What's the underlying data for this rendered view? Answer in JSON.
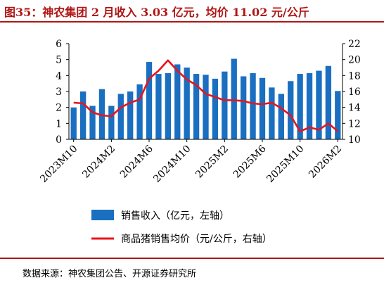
{
  "title": "图35：神农集团 2 月收入 3.03 亿元，均价 11.02 元/公斤",
  "source": "数据来源：神农集团公告、开源证券研究所",
  "chart_data": {
    "type": "bar+line",
    "x": [
      "2023M10",
      "2023M11",
      "2023M12",
      "2024M1",
      "2024M2",
      "2024M3",
      "2024M4",
      "2024M5",
      "2024M6",
      "2024M7",
      "2024M8",
      "2024M9",
      "2024M10",
      "2024M11",
      "2024M12",
      "2025M1",
      "2025M2",
      "2025M3",
      "2025M4",
      "2025M5",
      "2025M6",
      "2025M7",
      "2025M8",
      "2025M9",
      "2025M10",
      "2025M11",
      "2025M12",
      "2026M1",
      "2026M2"
    ],
    "x_tick_labels": [
      "2023M10",
      "2024M2",
      "2024M6",
      "2024M10",
      "2025M2",
      "2025M6",
      "2025M10",
      "2026M2"
    ],
    "series": [
      {
        "name": "销售收入（亿元，左轴）",
        "type": "bar",
        "axis": "left",
        "color": "#1a6fc0",
        "values": [
          2.0,
          3.0,
          2.1,
          3.15,
          2.1,
          2.85,
          3.0,
          3.45,
          4.85,
          4.1,
          4.15,
          4.7,
          4.5,
          4.1,
          4.05,
          3.8,
          4.25,
          5.05,
          3.95,
          4.15,
          3.85,
          3.25,
          2.85,
          3.65,
          4.1,
          4.15,
          4.3,
          4.6,
          3.03
        ]
      },
      {
        "name": "商品猪销售均价（元/公斤，右轴）",
        "type": "line",
        "axis": "right",
        "color": "#e8141c",
        "values": [
          14.6,
          14.5,
          13.4,
          13.0,
          12.9,
          14.0,
          14.6,
          15.0,
          17.6,
          18.6,
          19.9,
          18.6,
          17.5,
          16.8,
          15.7,
          15.3,
          14.9,
          14.9,
          14.8,
          14.5,
          14.4,
          14.6,
          13.9,
          13.0,
          11.0,
          11.5,
          11.2,
          12.0,
          11.02
        ]
      }
    ],
    "y_left": {
      "ylim": [
        0,
        6
      ],
      "ticks": [
        "0",
        "1",
        "2",
        "3",
        "4",
        "5",
        "6"
      ]
    },
    "y_right": {
      "ylim": [
        10,
        22
      ],
      "ticks": [
        "10",
        "12",
        "14",
        "16",
        "18",
        "20",
        "22"
      ]
    },
    "legend_placement": "bottom",
    "grid": false
  }
}
